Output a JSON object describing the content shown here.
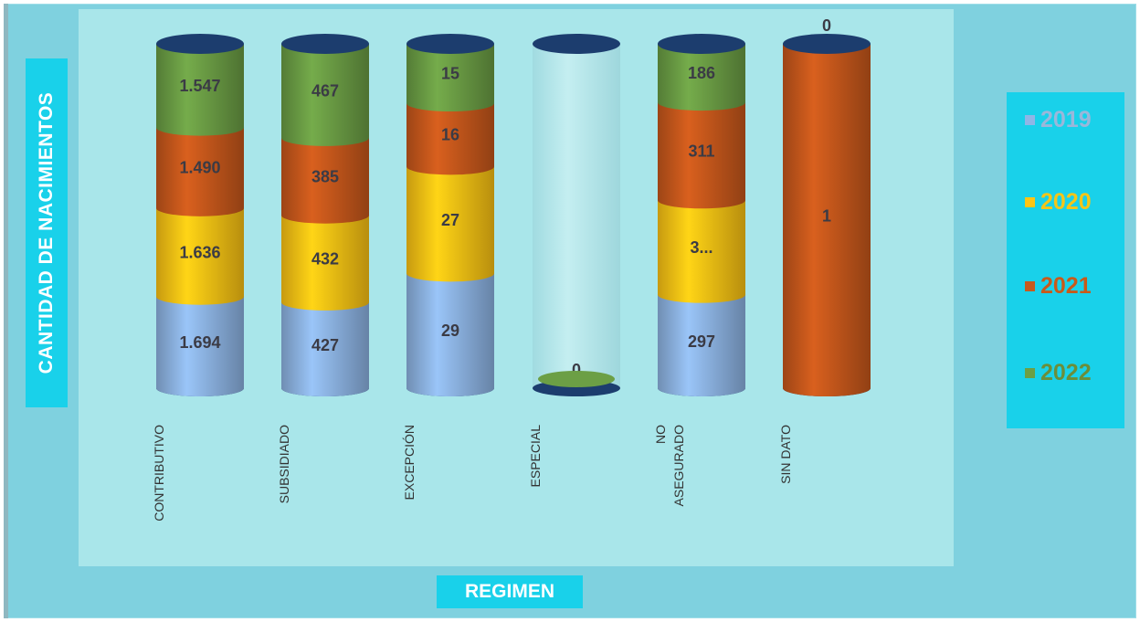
{
  "chart_data": {
    "type": "bar",
    "stacked": true,
    "title": "",
    "xlabel": "REGIMEN",
    "ylabel": "CANTIDAD DE NACIMIENTOS",
    "categories": [
      "CONTRIBUTIVO",
      "SUBSIDIADO",
      "EXCEPCIÓN",
      "ESPECIAL",
      "NO ASEGURADO",
      "SIN DATO"
    ],
    "category_lines": [
      [
        "CONTRIBUTIVO"
      ],
      [
        "SUBSIDIADO"
      ],
      [
        "EXCEPCIÓN"
      ],
      [
        "ESPECIAL"
      ],
      [
        "NO",
        "ASEGURADO"
      ],
      [
        "SIN DATO"
      ]
    ],
    "series": [
      {
        "name": "2019",
        "color": "#8fb6e6",
        "values": [
          1694,
          427,
          29,
          0,
          297,
          0
        ],
        "labels": [
          "1.694",
          "427",
          "29",
          "",
          "297",
          ""
        ]
      },
      {
        "name": "2020",
        "color": "#ffc514",
        "values": [
          1636,
          432,
          27,
          0,
          300,
          0
        ],
        "labels": [
          "1.636",
          "432",
          "27",
          "",
          "3...",
          ""
        ]
      },
      {
        "name": "2021",
        "color": "#c9591c",
        "values": [
          1490,
          385,
          16,
          0,
          311,
          1
        ],
        "labels": [
          "1.490",
          "385",
          "16",
          "",
          "311",
          "1"
        ]
      },
      {
        "name": "2022",
        "color": "#6c9f45",
        "values": [
          1547,
          467,
          15,
          0,
          186,
          0
        ],
        "labels": [
          "1.547",
          "467",
          "15",
          "0",
          "186",
          "0"
        ]
      }
    ],
    "legend_position": "right",
    "grid": false
  },
  "legend_text_colors": [
    "#9ab7da",
    "#f5c518",
    "#c85a1a",
    "#6b8e3a"
  ]
}
